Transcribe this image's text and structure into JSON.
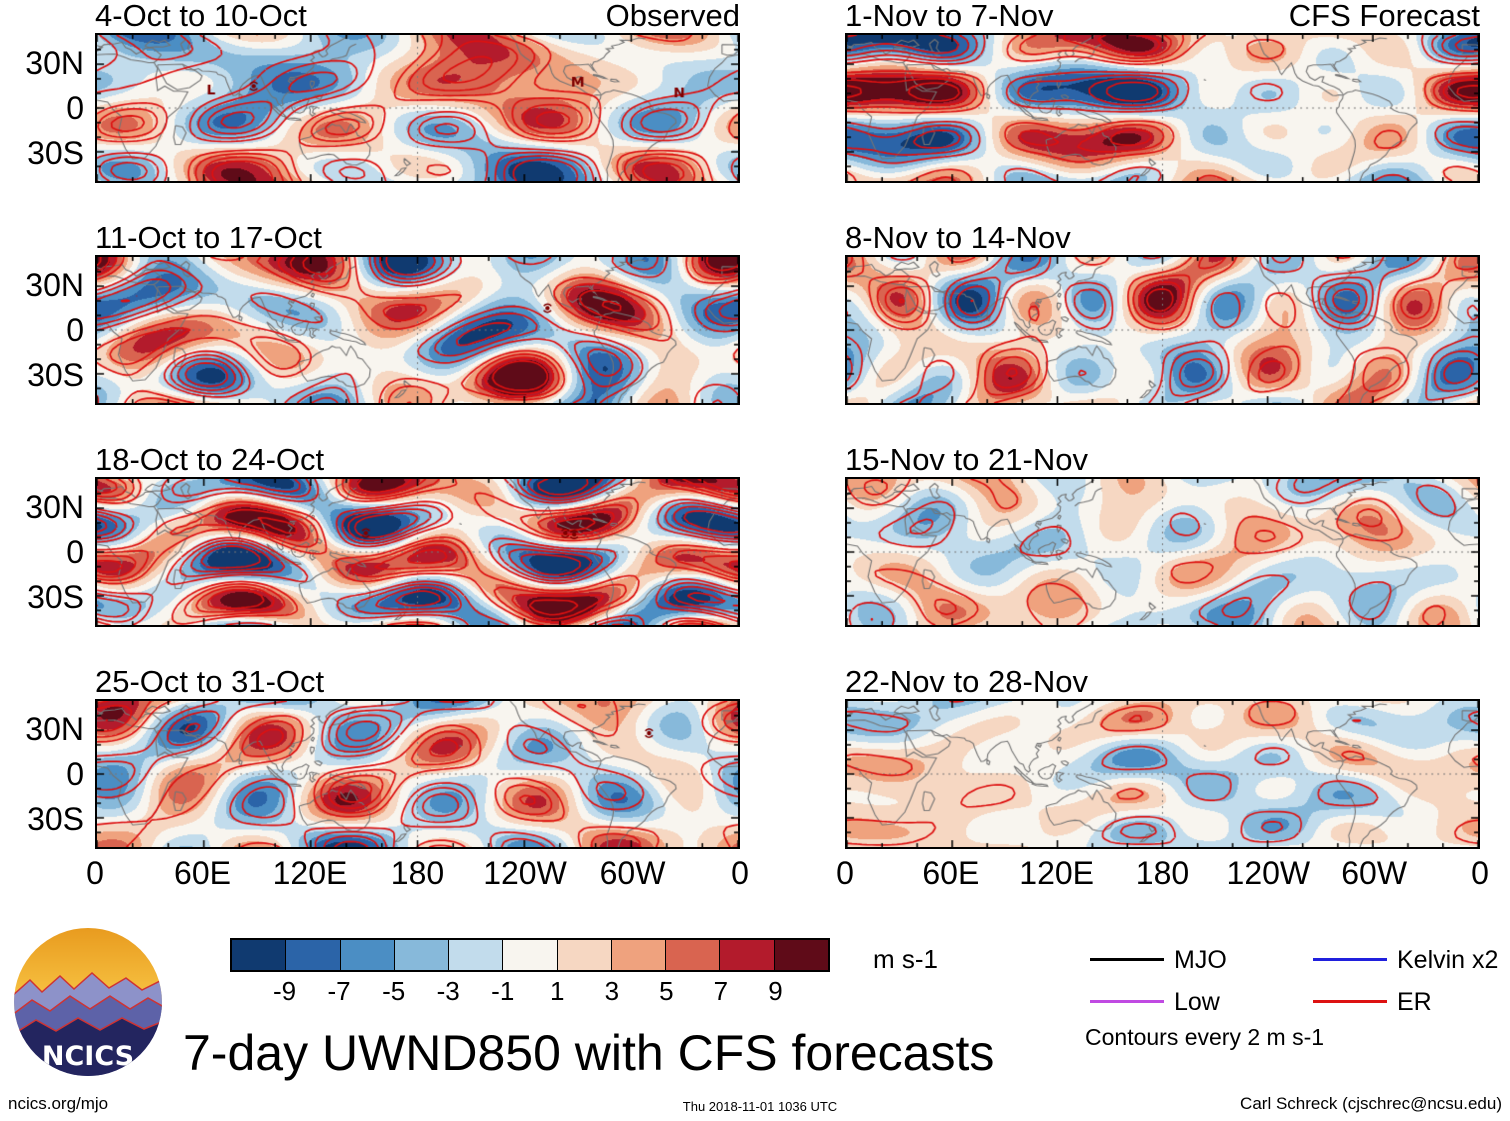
{
  "title": "7-day UWND850 with CFS forecasts",
  "logo_text": "NCICS",
  "meta": {
    "footer_left": "ncics.org/mjo",
    "footer_center": "Thu 2018-11-01 1036 UTC",
    "footer_right": "Carl Schreck (cjschrec@ncsu.edu)"
  },
  "chart_data": {
    "type": "heatmap",
    "title": "7-day UWND850 with CFS forecasts",
    "variable": "UWND850",
    "units": "m s-1",
    "columns": [
      {
        "header": "Observed"
      },
      {
        "header": "CFS Forecast"
      }
    ],
    "x_ticks": [
      "0",
      "60E",
      "120E",
      "180",
      "120W",
      "60W",
      "0"
    ],
    "x_tick_lons": [
      0,
      60,
      120,
      180,
      240,
      300,
      360
    ],
    "y_ticks": [
      "30N",
      "0",
      "30S"
    ],
    "y_tick_lats": [
      30,
      0,
      -30
    ],
    "lon_range": [
      0,
      360
    ],
    "lat_range": [
      -50,
      50
    ],
    "grid": {
      "equator_dashed": true,
      "dateline_dashed": true
    },
    "colorbar": {
      "levels": [
        -9,
        -7,
        -5,
        -3,
        -1,
        1,
        3,
        5,
        7,
        9
      ],
      "colors": [
        "#103a70",
        "#2b64a8",
        "#4b8ec4",
        "#87b9da",
        "#c2dcec",
        "#f8f5ef",
        "#f6d7c2",
        "#efa27e",
        "#d96450",
        "#b31b2c",
        "#5f0b18"
      ],
      "units": "m s-1"
    },
    "legend": {
      "items": [
        {
          "label": "MJO",
          "color": "#000000"
        },
        {
          "label": "Kelvin x2",
          "color": "#2020dd"
        },
        {
          "label": "Low",
          "color": "#c04ae2"
        },
        {
          "label": "ER",
          "color": "#dd1111"
        }
      ],
      "note": "Contours every 2 m s-1"
    },
    "contour_interval": "2 m s-1",
    "panels": [
      {
        "title": "4-Oct to 10-Oct",
        "column": "Observed",
        "relative_amplitude": 1.15,
        "markers": [
          {
            "kind": "letter",
            "text": "L",
            "lon": 64,
            "lat": 13
          },
          {
            "kind": "storm",
            "lon": 88,
            "lat": 15
          },
          {
            "kind": "letter",
            "text": "M",
            "lon": 270,
            "lat": 18
          },
          {
            "kind": "letter",
            "text": "N",
            "lon": 327,
            "lat": 11
          }
        ]
      },
      {
        "title": "11-Oct to 17-Oct",
        "column": "Observed",
        "relative_amplitude": 1.12,
        "markers": [
          {
            "kind": "storm",
            "lon": 253,
            "lat": 15
          }
        ]
      },
      {
        "title": "18-Oct to 24-Oct",
        "column": "Observed",
        "relative_amplitude": 1.1,
        "markers": [
          {
            "kind": "storm",
            "lon": 151,
            "lat": 13
          },
          {
            "kind": "storm",
            "lon": 263,
            "lat": 13
          },
          {
            "kind": "storm",
            "lon": 268,
            "lat": 12
          }
        ]
      },
      {
        "title": "25-Oct to 31-Oct",
        "column": "Observed",
        "relative_amplitude": 1.06,
        "markers": [
          {
            "kind": "storm",
            "lon": 310,
            "lat": 28
          }
        ]
      },
      {
        "title": "1-Nov to 7-Nov",
        "column": "CFS Forecast",
        "relative_amplitude": 1.0,
        "markers": []
      },
      {
        "title": "8-Nov to 14-Nov",
        "column": "CFS Forecast",
        "relative_amplitude": 0.92,
        "markers": []
      },
      {
        "title": "15-Nov to 21-Nov",
        "column": "CFS Forecast",
        "relative_amplitude": 0.6,
        "markers": []
      },
      {
        "title": "22-Nov to 28-Nov",
        "column": "CFS Forecast",
        "relative_amplitude": 0.52,
        "markers": []
      }
    ]
  }
}
